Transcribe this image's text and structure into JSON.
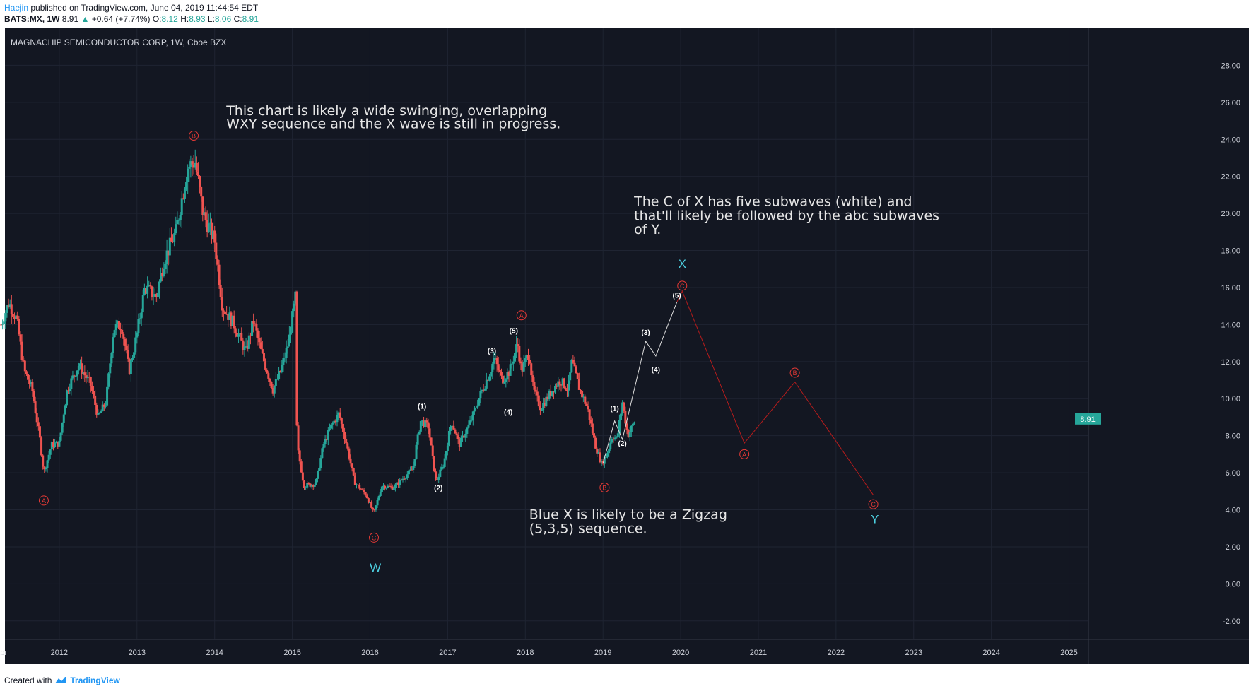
{
  "header": {
    "user": "Haejin",
    "published": "published on TradingView.com, June 04, 2019 11:44:54 EDT",
    "symbol": "BATS:MX, 1W",
    "last": "8.91",
    "change": "+0.64 (+7.74%)",
    "open_label": "O:",
    "open": "8.12",
    "high_label": "H:",
    "high": "8.93",
    "low_label": "L:",
    "low": "8.06",
    "close_label": "C:",
    "close": "8.91"
  },
  "footer": {
    "created_with": "Created with",
    "brand": "TradingView"
  },
  "colors": {
    "background": "#131722",
    "up": "#26a69a",
    "down": "#ef5350",
    "wave_red": "#e53935",
    "wave_cyan": "#4dd0e1",
    "white_path": "#dddddd",
    "price_tag": "#26a69a"
  },
  "chart_data": {
    "type": "candlestick",
    "title": "MAGNACHIP SEMICONDUCTOR CORP, 1W, Cboe BZX",
    "ylim": [
      -3,
      30
    ],
    "xlim": [
      2011.3,
      2025.25
    ],
    "y_ticks": [
      "28.00",
      "26.00",
      "24.00",
      "22.00",
      "20.00",
      "18.00",
      "16.00",
      "14.00",
      "12.00",
      "10.00",
      "8.00",
      "6.00",
      "4.00",
      "2.00",
      "0.00",
      "-2.00"
    ],
    "x_ticks": [
      {
        "label": "Apr",
        "x": 2011.25
      },
      {
        "label": "2012",
        "x": 2012.0
      },
      {
        "label": "2013",
        "x": 2013.0
      },
      {
        "label": "2014",
        "x": 2014.0
      },
      {
        "label": "2015",
        "x": 2015.0
      },
      {
        "label": "2016",
        "x": 2016.0
      },
      {
        "label": "2017",
        "x": 2017.0
      },
      {
        "label": "2018",
        "x": 2018.0
      },
      {
        "label": "2019",
        "x": 2019.0
      },
      {
        "label": "2020",
        "x": 2020.0
      },
      {
        "label": "2021",
        "x": 2021.0
      },
      {
        "label": "2022",
        "x": 2022.0
      },
      {
        "label": "2023",
        "x": 2023.0
      },
      {
        "label": "2024",
        "x": 2024.0
      },
      {
        "label": "2025",
        "x": 2025.0
      }
    ],
    "last_price": {
      "label": "8.91",
      "value": 8.91
    },
    "price_path": [
      [
        2011.25,
        14.0
      ],
      [
        2011.35,
        15.2
      ],
      [
        2011.45,
        14.3
      ],
      [
        2011.55,
        11.5
      ],
      [
        2011.65,
        10.5
      ],
      [
        2011.75,
        7.8
      ],
      [
        2011.8,
        6.0
      ],
      [
        2011.9,
        7.5
      ],
      [
        2012.0,
        7.6
      ],
      [
        2012.1,
        10.5
      ],
      [
        2012.25,
        11.8
      ],
      [
        2012.4,
        10.8
      ],
      [
        2012.5,
        9.0
      ],
      [
        2012.6,
        9.8
      ],
      [
        2012.7,
        13.8
      ],
      [
        2012.8,
        14.0
      ],
      [
        2012.9,
        11.5
      ],
      [
        2013.0,
        13.5
      ],
      [
        2013.1,
        16.0
      ],
      [
        2013.25,
        15.5
      ],
      [
        2013.35,
        17.5
      ],
      [
        2013.5,
        19.0
      ],
      [
        2013.65,
        22.5
      ],
      [
        2013.75,
        22.8
      ],
      [
        2013.85,
        20.0
      ],
      [
        2014.0,
        18.5
      ],
      [
        2014.1,
        15.0
      ],
      [
        2014.25,
        14.0
      ],
      [
        2014.4,
        12.5
      ],
      [
        2014.5,
        14.2
      ],
      [
        2014.6,
        12.5
      ],
      [
        2014.75,
        10.5
      ],
      [
        2014.85,
        11.5
      ],
      [
        2014.95,
        13.0
      ],
      [
        2015.04,
        15.5
      ],
      [
        2015.06,
        7.5
      ],
      [
        2015.15,
        5.3
      ],
      [
        2015.3,
        5.4
      ],
      [
        2015.4,
        7.5
      ],
      [
        2015.5,
        8.5
      ],
      [
        2015.6,
        9.2
      ],
      [
        2015.7,
        7.5
      ],
      [
        2015.8,
        5.5
      ],
      [
        2015.95,
        4.8
      ],
      [
        2016.05,
        3.8
      ],
      [
        2016.15,
        5.3
      ],
      [
        2016.3,
        5.2
      ],
      [
        2016.45,
        5.8
      ],
      [
        2016.55,
        6.2
      ],
      [
        2016.65,
        8.8
      ],
      [
        2016.75,
        8.5
      ],
      [
        2016.85,
        5.5
      ],
      [
        2016.95,
        6.5
      ],
      [
        2017.05,
        8.8
      ],
      [
        2017.15,
        7.5
      ],
      [
        2017.3,
        8.8
      ],
      [
        2017.4,
        10.0
      ],
      [
        2017.55,
        11.5
      ],
      [
        2017.6,
        12.2
      ],
      [
        2017.7,
        11.0
      ],
      [
        2017.8,
        11.5
      ],
      [
        2017.9,
        13.0
      ],
      [
        2017.95,
        11.5
      ],
      [
        2018.05,
        12.5
      ],
      [
        2018.1,
        10.5
      ],
      [
        2018.2,
        9.5
      ],
      [
        2018.35,
        10.5
      ],
      [
        2018.45,
        11.0
      ],
      [
        2018.55,
        10.5
      ],
      [
        2018.6,
        12.0
      ],
      [
        2018.7,
        10.5
      ],
      [
        2018.8,
        9.5
      ],
      [
        2018.9,
        7.5
      ],
      [
        2018.98,
        6.5
      ],
      [
        2019.05,
        7.0
      ],
      [
        2019.12,
        8.0
      ],
      [
        2019.18,
        7.8
      ],
      [
        2019.25,
        9.8
      ],
      [
        2019.32,
        8.0
      ],
      [
        2019.42,
        8.91
      ]
    ],
    "annotations": [
      {
        "text": "This chart is likely a wide swinging, overlapping",
        "x": 2014.15,
        "y": 25.3
      },
      {
        "text": "WXY sequence and the X wave is still in progress.",
        "x": 2014.15,
        "y": 24.6
      },
      {
        "text": "The C of X has five subwaves (white) and",
        "x": 2019.4,
        "y": 20.4
      },
      {
        "text": "that'll likely be followed by the abc subwaves",
        "x": 2019.4,
        "y": 19.65
      },
      {
        "text": "of Y.",
        "x": 2019.4,
        "y": 18.9
      },
      {
        "text": "Blue X is likely to be a Zigzag",
        "x": 2018.05,
        "y": 3.5
      },
      {
        "text": "(5,3,5) sequence.",
        "x": 2018.05,
        "y": 2.75
      }
    ],
    "wave_labels_red": [
      {
        "text": "A",
        "x": 2011.8,
        "y": 4.5
      },
      {
        "text": "B",
        "x": 2013.73,
        "y": 24.2
      },
      {
        "text": "C",
        "x": 2016.05,
        "y": 2.5
      },
      {
        "text": "A",
        "x": 2017.95,
        "y": 14.5
      },
      {
        "text": "B",
        "x": 2019.02,
        "y": 5.2
      },
      {
        "text": "C",
        "x": 2020.02,
        "y": 16.1
      },
      {
        "text": "A",
        "x": 2020.82,
        "y": 7.0
      },
      {
        "text": "B",
        "x": 2021.47,
        "y": 11.4
      },
      {
        "text": "C",
        "x": 2022.48,
        "y": 4.3
      }
    ],
    "wave_labels_white": [
      {
        "text": "(1)",
        "x": 2016.67,
        "y": 9.6
      },
      {
        "text": "(2)",
        "x": 2016.88,
        "y": 5.2
      },
      {
        "text": "(3)",
        "x": 2017.57,
        "y": 12.6
      },
      {
        "text": "(4)",
        "x": 2017.78,
        "y": 9.3
      },
      {
        "text": "(5)",
        "x": 2017.85,
        "y": 13.7
      },
      {
        "text": "(1)",
        "x": 2019.15,
        "y": 9.5
      },
      {
        "text": "(2)",
        "x": 2019.25,
        "y": 7.6
      },
      {
        "text": "(3)",
        "x": 2019.55,
        "y": 13.6
      },
      {
        "text": "(4)",
        "x": 2019.68,
        "y": 11.6
      },
      {
        "text": "(5)",
        "x": 2019.95,
        "y": 15.6
      }
    ],
    "wave_labels_cyan": [
      {
        "text": "W",
        "x": 2016.07,
        "y": 0.9
      },
      {
        "text": "X",
        "x": 2020.02,
        "y": 17.3
      },
      {
        "text": "Y",
        "x": 2022.5,
        "y": 3.5
      }
    ],
    "white_path": [
      [
        2019.0,
        6.5
      ],
      [
        2019.15,
        8.8
      ],
      [
        2019.25,
        7.8
      ],
      [
        2019.55,
        13.1
      ],
      [
        2019.68,
        12.3
      ],
      [
        2019.95,
        15.2
      ]
    ],
    "red_path": [
      [
        2019.95,
        15.2
      ],
      [
        2020.02,
        15.8
      ],
      [
        2020.82,
        7.6
      ],
      [
        2021.47,
        10.9
      ],
      [
        2022.48,
        4.8
      ]
    ]
  }
}
